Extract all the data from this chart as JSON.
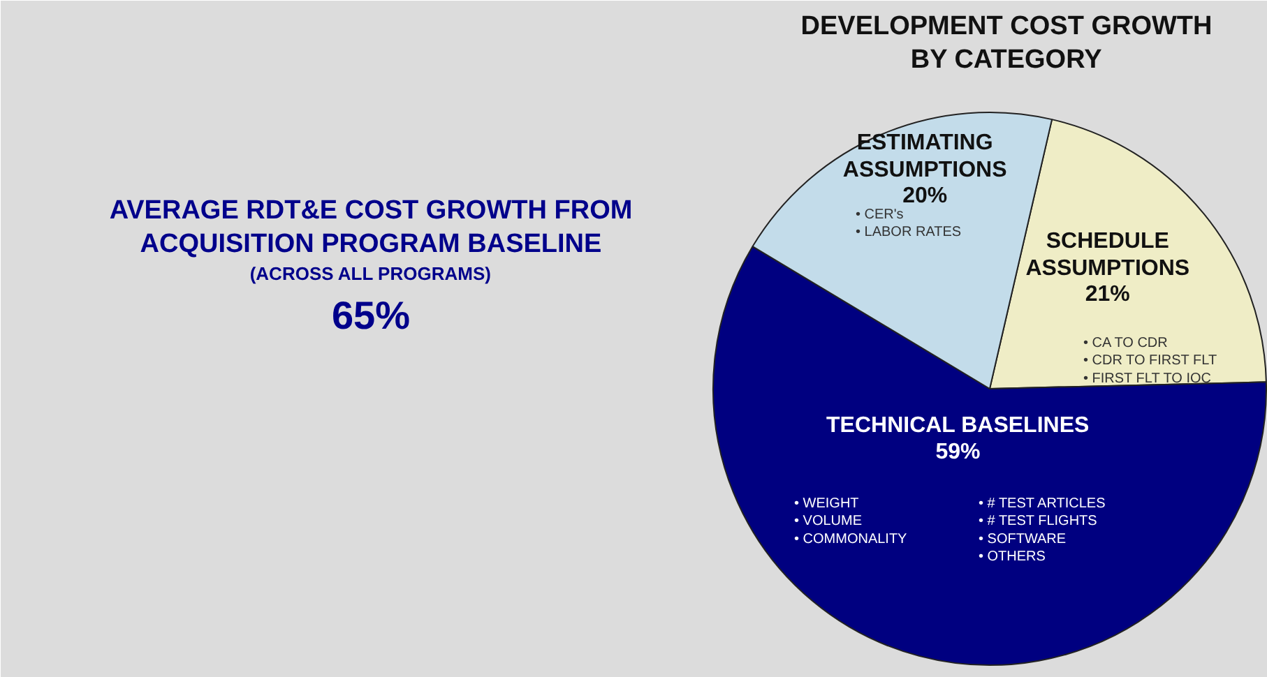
{
  "chart_data": {
    "type": "pie",
    "title": "DEVELOPMENT COST GROWTH BY CATEGORY",
    "categories": [
      "SCHEDULE ASSUMPTIONS",
      "TECHNICAL BASELINES",
      "ESTIMATING ASSUMPTIONS"
    ],
    "values": [
      21,
      59,
      20
    ],
    "value_labels": [
      "21%",
      "59%",
      "20%"
    ],
    "colors": [
      "#efedc6",
      "#000080",
      "#c3dcea"
    ],
    "annotations": [
      "AVERAGE RDT&E COST GROWTH FROM ACQUISITION PROGRAM BASELINE",
      "(ACROSS ALL PROGRAMS)",
      "65%",
      "• CA TO CDR\n• CDR TO FIRST FLT\n• FIRST FLT TO IOC",
      "• WEIGHT\n• VOLUME\n• COMMONALITY",
      "• # TEST ARTICLES\n• # TEST FLIGHTS\n• SOFTWARE\n• OTHERS",
      "• CER's\n• LABOR RATES"
    ]
  }
}
